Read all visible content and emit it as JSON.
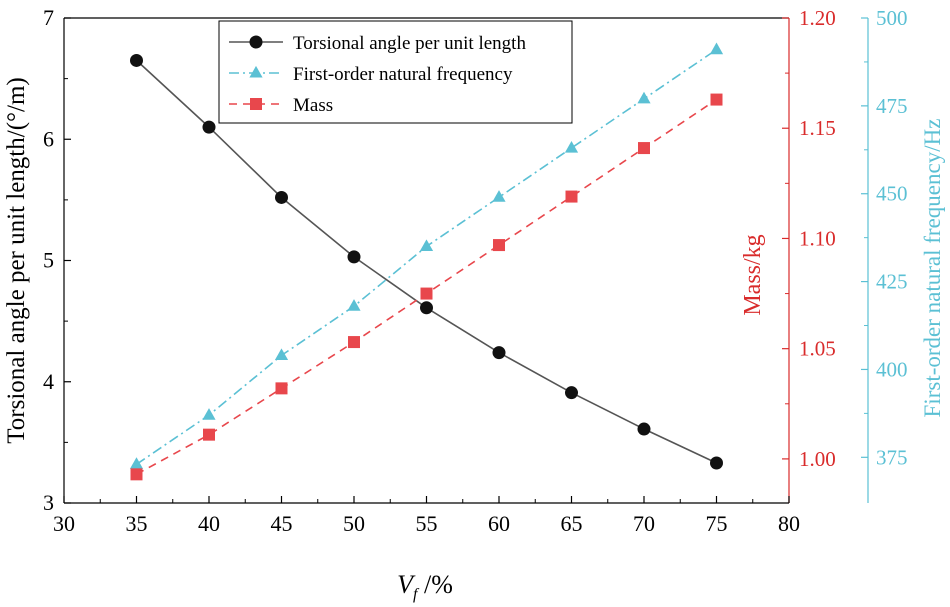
{
  "chart_data": {
    "type": "line",
    "title": "",
    "x": [
      35,
      40,
      45,
      50,
      55,
      60,
      65,
      70,
      75
    ],
    "xlim": [
      30,
      80
    ],
    "xticks": [
      "30",
      "35",
      "40",
      "45",
      "50",
      "55",
      "60",
      "65",
      "70",
      "75",
      "80"
    ],
    "xlabel_main": "V",
    "xlabel_sub": "f",
    "xlabel_unit": " /%",
    "axes": {
      "left": {
        "label": "Torsional angle per unit length/(°/m)",
        "ylim": [
          3,
          7
        ],
        "ticks": [
          "3",
          "4",
          "5",
          "6",
          "7"
        ],
        "color": "#000000"
      },
      "right1": {
        "label": "Mass/kg",
        "ylim": [
          0.98,
          1.2
        ],
        "ticks": [
          "1.00",
          "1.05",
          "1.10",
          "1.15",
          "1.20"
        ],
        "color": "#d92b2b"
      },
      "right2": {
        "label": "First-order natural frequency/Hz",
        "ylim": [
          362,
          500
        ],
        "ticks": [
          "375",
          "400",
          "425",
          "450",
          "475",
          "500"
        ],
        "color": "#5bc0d4"
      }
    },
    "series": [
      {
        "name": "Torsional angle per unit length",
        "axis": "left",
        "values": [
          6.65,
          6.1,
          5.52,
          5.03,
          4.61,
          4.24,
          3.91,
          3.61,
          3.33
        ],
        "color": "#555555",
        "marker_color": "#111111",
        "marker": "circle",
        "dash": ""
      },
      {
        "name": "First-order natural frequency",
        "axis": "right2",
        "values": [
          373,
          387,
          404,
          418,
          435,
          449,
          463,
          477,
          491
        ],
        "color": "#5bc0d4",
        "marker_color": "#5bc0d4",
        "marker": "triangle",
        "dash": "10,4,2,4"
      },
      {
        "name": "Mass",
        "axis": "right1",
        "values": [
          0.993,
          1.011,
          1.032,
          1.053,
          1.075,
          1.097,
          1.119,
          1.141,
          1.163
        ],
        "color": "#e8474c",
        "marker_color": "#e8474c",
        "marker": "square",
        "dash": "8,6"
      }
    ],
    "legend_position": "top-left",
    "grid": false
  }
}
